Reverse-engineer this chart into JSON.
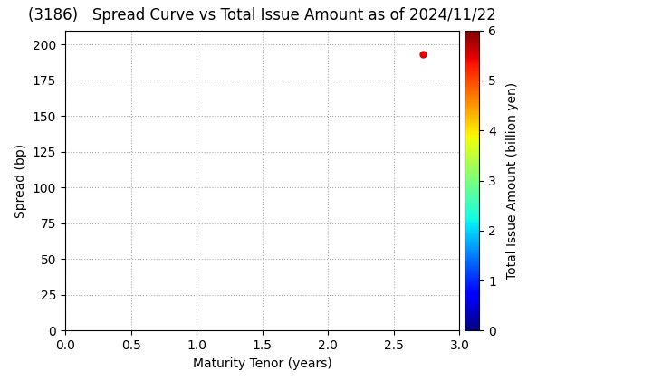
{
  "title": "(3186)   Spread Curve vs Total Issue Amount as of 2024/11/22",
  "xlabel": "Maturity Tenor (years)",
  "ylabel": "Spread (bp)",
  "colorbar_label": "Total Issue Amount (billion yen)",
  "xlim": [
    0.0,
    3.0
  ],
  "ylim": [
    0,
    210
  ],
  "ytick_max": 200,
  "xticks": [
    0.0,
    0.5,
    1.0,
    1.5,
    2.0,
    2.5,
    3.0
  ],
  "yticks": [
    0,
    25,
    50,
    75,
    100,
    125,
    150,
    175,
    200
  ],
  "colorbar_ticks": [
    0,
    1,
    2,
    3,
    4,
    5,
    6
  ],
  "colorbar_lim": [
    0,
    6
  ],
  "scatter_x": [
    2.72
  ],
  "scatter_y": [
    193
  ],
  "scatter_c": [
    5.5
  ],
  "scatter_size": 25,
  "background_color": "#ffffff",
  "grid_color": "#aaaaaa",
  "title_fontsize": 12,
  "axis_fontsize": 10,
  "tick_fontsize": 10
}
